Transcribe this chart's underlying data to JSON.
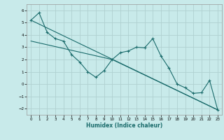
{
  "title": "",
  "xlabel": "Humidex (Indice chaleur)",
  "bg_color": "#c8eaea",
  "grid_color": "#b0d0d0",
  "line_color": "#1a6b6b",
  "xlim": [
    -0.5,
    23.5
  ],
  "ylim": [
    -2.5,
    6.5
  ],
  "xticks": [
    0,
    1,
    2,
    3,
    4,
    5,
    6,
    7,
    8,
    9,
    10,
    11,
    12,
    13,
    14,
    15,
    16,
    17,
    18,
    19,
    20,
    21,
    22,
    23
  ],
  "yticks": [
    -2,
    -1,
    0,
    1,
    2,
    3,
    4,
    5,
    6
  ],
  "main_series_x": [
    0,
    1,
    2,
    3,
    4,
    5,
    6,
    7,
    8,
    9,
    10,
    11,
    12,
    13,
    14,
    15,
    16,
    17,
    18,
    19,
    20,
    21,
    22,
    23
  ],
  "main_series_y": [
    5.2,
    5.8,
    4.2,
    3.7,
    3.5,
    2.4,
    1.8,
    1.0,
    0.55,
    1.1,
    2.0,
    2.55,
    2.7,
    3.0,
    2.95,
    3.7,
    2.3,
    1.3,
    0.0,
    -0.3,
    -0.75,
    -0.7,
    0.3,
    -2.1
  ],
  "trend1_x": [
    0,
    23
  ],
  "trend1_y": [
    5.2,
    -2.1
  ],
  "trend2_x": [
    0,
    10,
    23
  ],
  "trend2_y": [
    3.5,
    2.0,
    -2.1
  ],
  "figsize": [
    3.2,
    2.0
  ],
  "dpi": 100
}
